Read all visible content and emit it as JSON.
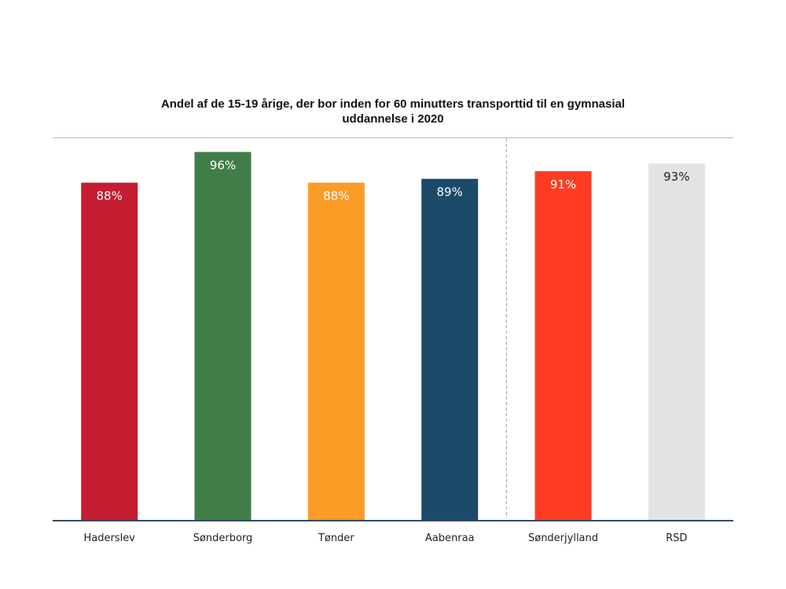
{
  "chart_data": {
    "type": "bar",
    "title": [
      "Andel af de 15-19 årige, der bor inden for 60 minutters transporttid til en gymnasial",
      "uddannelse i 2020"
    ],
    "xlabel": "",
    "ylabel": "",
    "ylim": [
      0,
      1
    ],
    "value_format": "percent",
    "categories": [
      "Haderslev",
      "Sønderborg",
      "Tønder",
      "Aabenraa",
      "Sønderjylland",
      "RSD"
    ],
    "values": [
      0.88,
      0.96,
      0.88,
      0.89,
      0.91,
      0.93
    ],
    "data_labels": [
      "88%",
      "96%",
      "88%",
      "89%",
      "91%",
      "93%"
    ],
    "colors": [
      "#c41c30",
      "#417e47",
      "#fb9c27",
      "#1b4a6b",
      "#ff3c22",
      "#e3e3e3"
    ],
    "label_colors": [
      "#ffffff",
      "#ffffff",
      "#ffffff",
      "#ffffff",
      "#ffffff",
      "#222222"
    ],
    "separator_after_index": 3,
    "grid": false
  }
}
